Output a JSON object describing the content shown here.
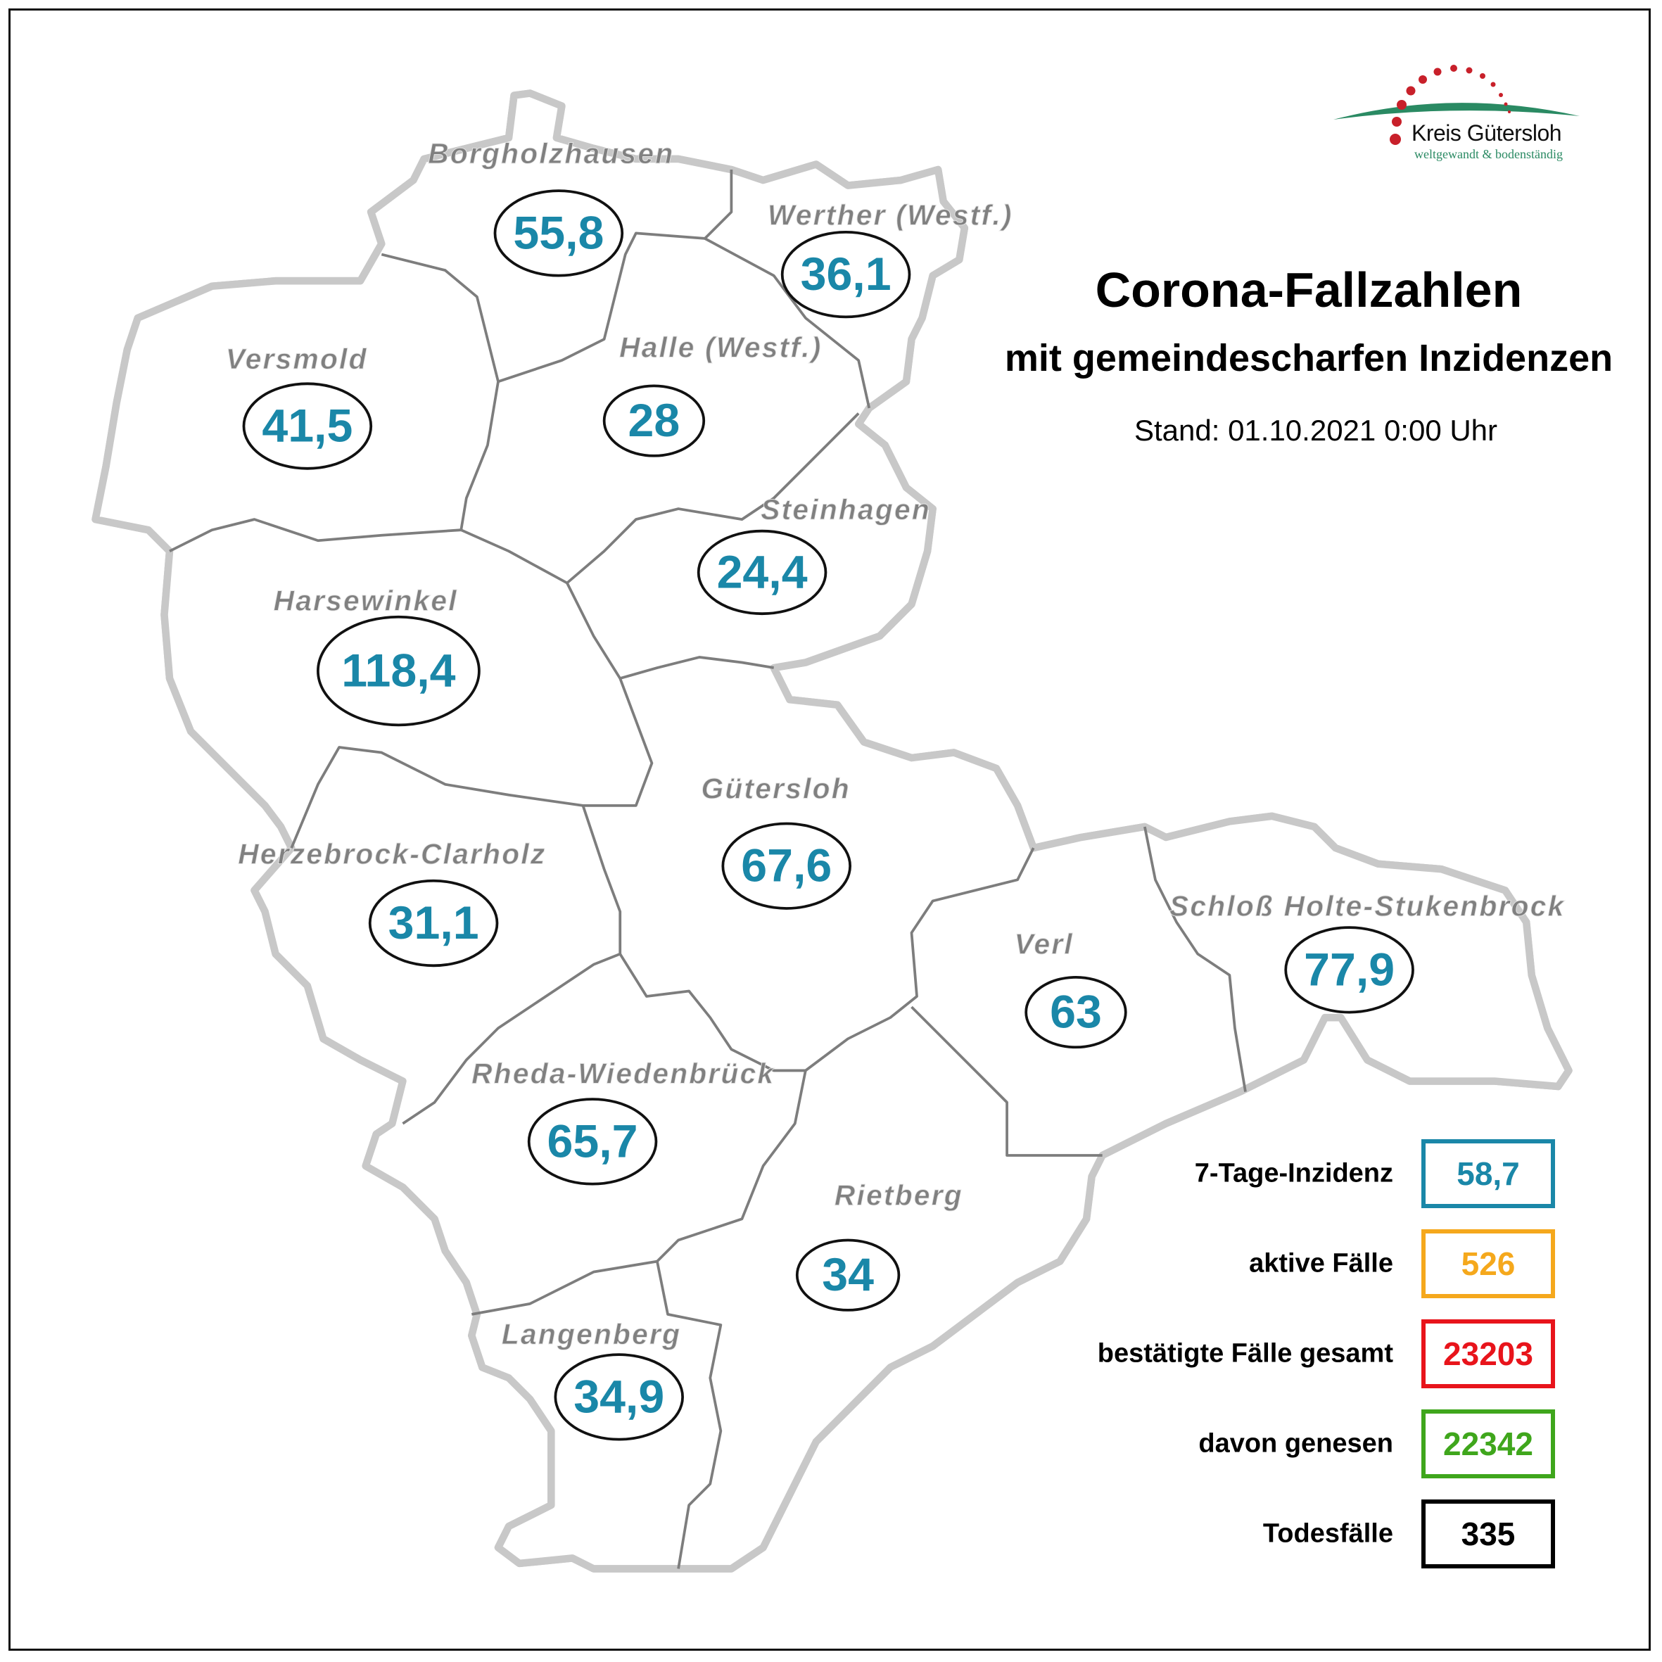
{
  "header": {
    "title": "Corona-Fallzahlen",
    "subtitle": "mit gemeindescharfen Inzidenzen",
    "stand": "Stand: 01.10.2021 0:00 Uhr"
  },
  "logo": {
    "name": "Kreis Gütersloh",
    "tagline": "weltgewandt & bodenständig",
    "dot_color": "#c8202a",
    "arc_color": "#2a8a63"
  },
  "regions": [
    {
      "name": "Borgholzhausen",
      "incidence": "55,8"
    },
    {
      "name": "Werther (Westf.)",
      "incidence": "36,1"
    },
    {
      "name": "Versmold",
      "incidence": "41,5"
    },
    {
      "name": "Halle (Westf.)",
      "incidence": "28"
    },
    {
      "name": "Steinhagen",
      "incidence": "24,4"
    },
    {
      "name": "Harsewinkel",
      "incidence": "118,4"
    },
    {
      "name": "Gütersloh",
      "incidence": "67,6"
    },
    {
      "name": "Herzebrock-Clarholz",
      "incidence": "31,1"
    },
    {
      "name": "Schloß Holte-Stukenbrock",
      "incidence": "77,9"
    },
    {
      "name": "Verl",
      "incidence": "63"
    },
    {
      "name": "Rheda-Wiedenbrück",
      "incidence": "65,7"
    },
    {
      "name": "Rietberg",
      "incidence": "34"
    },
    {
      "name": "Langenberg",
      "incidence": "34,9"
    }
  ],
  "legend": [
    {
      "label": "7-Tage-Inzidenz",
      "value": "58,7",
      "color": "#1a87a8"
    },
    {
      "label": "aktive Fälle",
      "value": "526",
      "color": "#f5a81c"
    },
    {
      "label": "bestätigte Fälle gesamt",
      "value": "23203",
      "color": "#e8141b"
    },
    {
      "label": "davon genesen",
      "value": "22342",
      "color": "#3fa61c"
    },
    {
      "label": "Todesfälle",
      "value": "335",
      "color": "#000000"
    }
  ]
}
